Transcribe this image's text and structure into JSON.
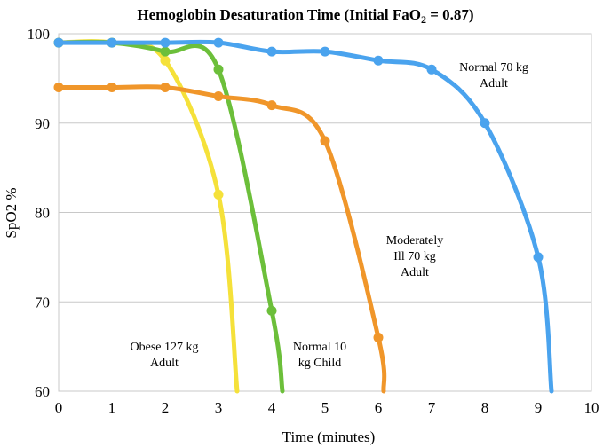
{
  "chart_data": {
    "type": "line",
    "title": "Hemoglobin Desaturation Time (Initial FaO",
    "title_sub": "2",
    "title_suffix": " = 0.87)",
    "xlabel": "Time (minutes)",
    "ylabel": "SpO2 %",
    "xlim": [
      0,
      10
    ],
    "ylim": [
      60,
      100
    ],
    "x_ticks": [
      "0",
      "1",
      "2",
      "3",
      "4",
      "5",
      "6",
      "7",
      "8",
      "9",
      "10"
    ],
    "y_ticks": [
      "60",
      "70",
      "80",
      "90",
      "100"
    ],
    "grid": true,
    "series": [
      {
        "name": "Obese 127 kg Adult",
        "label_lines": [
          "Obese 127 kg",
          "Adult"
        ],
        "color": "#f5e13a",
        "x": [
          0,
          1,
          2,
          3,
          3.35
        ],
        "y": [
          99,
          99,
          97,
          82,
          60
        ]
      },
      {
        "name": "Normal 10 kg Child",
        "label_lines": [
          "Normal 10",
          "kg Child"
        ],
        "color": "#6cbf3a",
        "x": [
          0,
          1,
          2,
          3,
          4,
          4.2
        ],
        "y": [
          99,
          99,
          98,
          96,
          69,
          60
        ]
      },
      {
        "name": "Moderately Ill 70 kg Adult",
        "label_lines": [
          "Moderately",
          "Ill 70 kg",
          "Adult"
        ],
        "color": "#f0962a",
        "x": [
          0,
          1,
          2,
          3,
          4,
          5,
          6,
          6.1
        ],
        "y": [
          94,
          94,
          94,
          93,
          92,
          88,
          66,
          60
        ]
      },
      {
        "name": "Normal 70 kg Adult",
        "label_lines": [
          "Normal 70 kg",
          "Adult"
        ],
        "color": "#4aa3ee",
        "x": [
          0,
          1,
          2,
          3,
          4,
          5,
          6,
          7,
          8,
          9,
          9.25
        ],
        "y": [
          99,
          99,
          99,
          99,
          98,
          98,
          97,
          96,
          90,
          75,
          60
        ]
      }
    ]
  }
}
